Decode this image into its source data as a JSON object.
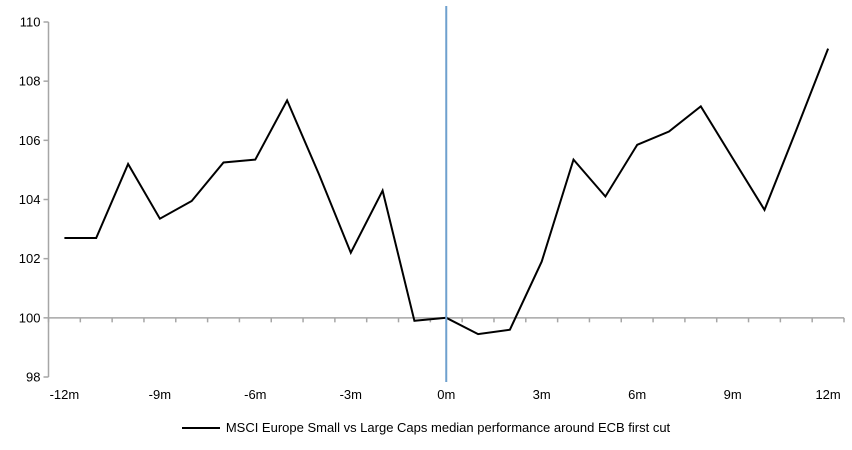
{
  "chart_data": {
    "type": "line",
    "title": "",
    "xlabel": "",
    "ylabel": "",
    "series_name": "MSCI Europe Small vs Large Caps median performance around ECB first cut",
    "x": [
      -12,
      -11,
      -10,
      -9,
      -8,
      -7,
      -6,
      -5,
      -4,
      -3,
      -2,
      -1,
      0,
      1,
      2,
      3,
      4,
      5,
      6,
      7,
      8,
      9,
      10,
      11,
      12
    ],
    "values": [
      102.7,
      102.7,
      105.2,
      103.35,
      103.95,
      105.25,
      105.35,
      107.35,
      104.85,
      102.2,
      104.3,
      99.9,
      100.0,
      99.45,
      99.6,
      101.9,
      105.35,
      104.1,
      105.85,
      106.3,
      107.15,
      105.4,
      103.65,
      106.35,
      109.1
    ],
    "ylim": [
      98,
      110
    ],
    "ytick_values": [
      110,
      108,
      106,
      104,
      102,
      100,
      98
    ],
    "ytick_labels": [
      "110",
      "108",
      "106",
      "104",
      "102",
      "100",
      "98"
    ],
    "xtick_positions": [
      -12,
      -9,
      -6,
      -3,
      0,
      3,
      6,
      9,
      12
    ],
    "xtick_labels": [
      "-12m",
      "-9m",
      "-6m",
      "-3m",
      "0m",
      "3m",
      "6m",
      "9m",
      "12m"
    ],
    "baseline_value": 100,
    "event_line_x": 0,
    "grid": "off",
    "legend_position": "bottom"
  },
  "colors": {
    "series_line": "#000000",
    "axis_line": "#A6A6A6",
    "event_line": "#6FA0CE",
    "tick_text": "#000000"
  },
  "legend": {
    "label": "MSCI Europe Small vs Large Caps median performance around ECB first cut"
  }
}
